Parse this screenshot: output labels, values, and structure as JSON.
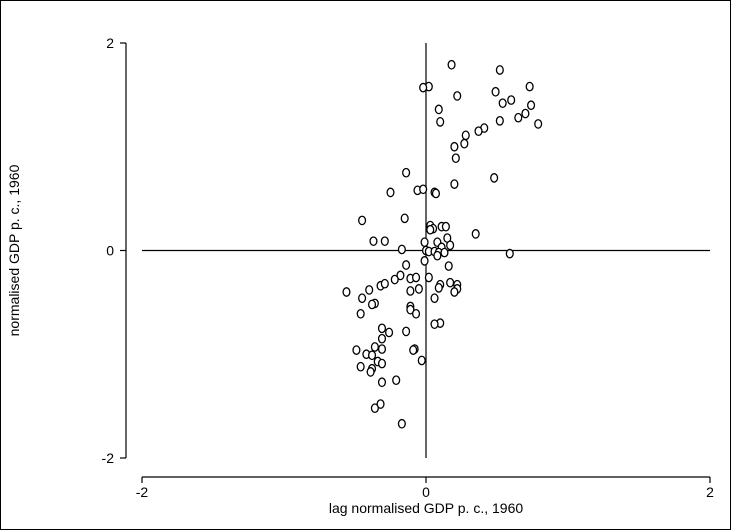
{
  "chart_data": {
    "type": "scatter",
    "title": "",
    "xlabel": "lag normalised GDP p. c., 1960",
    "ylabel": "normalised GDP p. c., 1960",
    "xlim": [
      -2,
      2
    ],
    "ylim": [
      -2,
      2
    ],
    "xticks": [
      "-2",
      "0",
      "2"
    ],
    "yticks": [
      "2",
      "0",
      "-2"
    ],
    "reference_lines": {
      "x": 0,
      "y": 0
    },
    "marker": "hollow circle",
    "grid": false,
    "legend": "none",
    "points": [
      [
        0.18,
        1.79
      ],
      [
        0.52,
        1.74
      ],
      [
        0.73,
        1.58
      ],
      [
        0.02,
        1.58
      ],
      [
        -0.02,
        1.57
      ],
      [
        0.49,
        1.53
      ],
      [
        0.22,
        1.49
      ],
      [
        0.6,
        1.45
      ],
      [
        0.54,
        1.42
      ],
      [
        0.74,
        1.4
      ],
      [
        0.09,
        1.36
      ],
      [
        0.7,
        1.32
      ],
      [
        0.65,
        1.28
      ],
      [
        0.52,
        1.25
      ],
      [
        0.1,
        1.24
      ],
      [
        0.79,
        1.22
      ],
      [
        0.41,
        1.18
      ],
      [
        0.37,
        1.15
      ],
      [
        0.28,
        1.11
      ],
      [
        0.27,
        1.03
      ],
      [
        0.2,
        1.0
      ],
      [
        0.21,
        0.89
      ],
      [
        -0.14,
        0.75
      ],
      [
        0.48,
        0.7
      ],
      [
        0.2,
        0.64
      ],
      [
        -0.25,
        0.56
      ],
      [
        0.06,
        0.56
      ],
      [
        0.07,
        0.55
      ],
      [
        -0.06,
        0.58
      ],
      [
        -0.02,
        0.59
      ],
      [
        -0.15,
        0.31
      ],
      [
        -0.45,
        0.29
      ],
      [
        0.03,
        0.24
      ],
      [
        0.11,
        0.23
      ],
      [
        0.14,
        0.23
      ],
      [
        0.05,
        0.21
      ],
      [
        0.03,
        0.2
      ],
      [
        0.35,
        0.16
      ],
      [
        0.15,
        0.12
      ],
      [
        -0.37,
        0.09
      ],
      [
        -0.29,
        0.09
      ],
      [
        0.08,
        0.08
      ],
      [
        -0.01,
        0.08
      ],
      [
        0.17,
        0.05
      ],
      [
        0.11,
        0.03
      ],
      [
        -0.17,
        0.01
      ],
      [
        0.0,
        0.0
      ],
      [
        0.02,
        -0.01
      ],
      [
        0.06,
        -0.01
      ],
      [
        0.09,
        -0.02
      ],
      [
        0.13,
        -0.02
      ],
      [
        0.59,
        -0.03
      ],
      [
        0.08,
        -0.05
      ],
      [
        -0.01,
        -0.1
      ],
      [
        -0.14,
        -0.14
      ],
      [
        0.16,
        -0.15
      ],
      [
        -0.18,
        -0.24
      ],
      [
        -0.11,
        -0.27
      ],
      [
        0.02,
        -0.26
      ],
      [
        -0.07,
        -0.26
      ],
      [
        -0.22,
        -0.28
      ],
      [
        0.22,
        -0.33
      ],
      [
        0.1,
        -0.33
      ],
      [
        0.17,
        -0.31
      ],
      [
        0.09,
        -0.36
      ],
      [
        0.22,
        -0.37
      ],
      [
        -0.32,
        -0.34
      ],
      [
        -0.29,
        -0.32
      ],
      [
        -0.56,
        -0.4
      ],
      [
        -0.4,
        -0.38
      ],
      [
        -0.05,
        -0.37
      ],
      [
        -0.11,
        -0.39
      ],
      [
        -0.45,
        -0.46
      ],
      [
        0.06,
        -0.46
      ],
      [
        0.2,
        -0.4
      ],
      [
        -0.36,
        -0.51
      ],
      [
        -0.38,
        -0.52
      ],
      [
        -0.11,
        -0.54
      ],
      [
        -0.11,
        -0.57
      ],
      [
        -0.07,
        -0.61
      ],
      [
        -0.46,
        -0.61
      ],
      [
        0.1,
        -0.7
      ],
      [
        0.06,
        -0.71
      ],
      [
        -0.31,
        -0.75
      ],
      [
        -0.14,
        -0.78
      ],
      [
        -0.26,
        -0.79
      ],
      [
        -0.31,
        -0.85
      ],
      [
        -0.08,
        -0.95
      ],
      [
        -0.09,
        -0.96
      ],
      [
        -0.36,
        -0.93
      ],
      [
        -0.49,
        -0.96
      ],
      [
        -0.31,
        -0.95
      ],
      [
        -0.42,
        -1.0
      ],
      [
        -0.38,
        -1.01
      ],
      [
        -0.03,
        -1.06
      ],
      [
        -0.34,
        -1.07
      ],
      [
        -0.31,
        -1.09
      ],
      [
        -0.46,
        -1.12
      ],
      [
        -0.38,
        -1.14
      ],
      [
        -0.39,
        -1.17
      ],
      [
        -0.31,
        -1.27
      ],
      [
        -0.21,
        -1.25
      ],
      [
        -0.32,
        -1.48
      ],
      [
        -0.36,
        -1.52
      ],
      [
        -0.17,
        -1.67
      ]
    ]
  }
}
